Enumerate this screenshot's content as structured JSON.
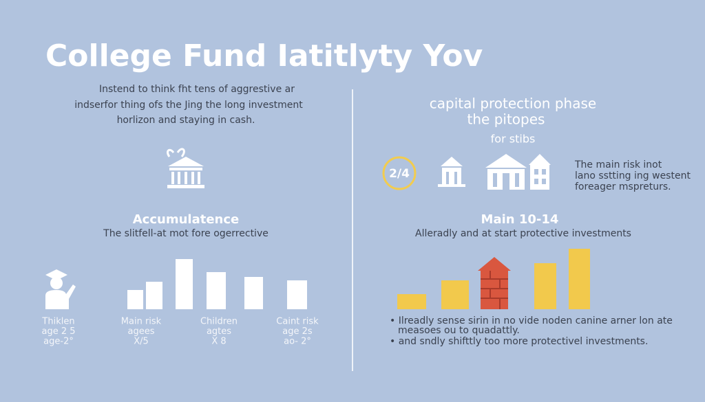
{
  "title": "College Fund Iatitlyty Yov",
  "left": {
    "intro": [
      "Instend to think fht tens of aggrestive ar",
      "indserfor thing ofs the Jing the long investment",
      "horlizon and staying in cash."
    ],
    "heading": "Accumulatence",
    "subheading": "The slitfell-at mot fore ogerrective",
    "labels": [
      [
        "Thiklen",
        "age 2 5",
        "age-2°"
      ],
      [
        "Main risk",
        "agees",
        "X/5"
      ],
      [
        "Children",
        "agtes",
        "X 8"
      ],
      [
        "Caint risk",
        "age 2s",
        "ao- 2°"
      ]
    ]
  },
  "right": {
    "heading": [
      "capital protection phase",
      "the pitopes"
    ],
    "subheading": "for stibs",
    "badge": "2/4",
    "side_text": [
      "The main risk inot",
      "lano sstting ing westent",
      "foreager mspreturs."
    ],
    "heading2": "Main 10-14",
    "subheading2": "Alleradly and at start protective investments",
    "bullets": [
      [
        "• Ilreadly sense sirin in no vide noden canine arner lon ate",
        "measoes ou to quadattly."
      ],
      [
        "• and sndly shifttly too more protectivel investments."
      ]
    ]
  }
}
